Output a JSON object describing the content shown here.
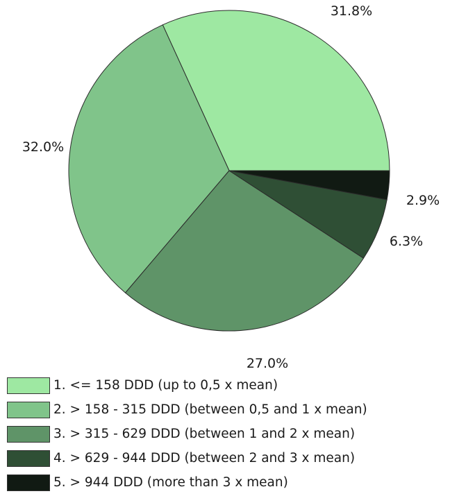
{
  "chart_data": {
    "type": "pie",
    "start_angle_deg": 0,
    "direction": "counterclockwise",
    "slices": [
      {
        "label": "1. <= 158 DDD (up to 0,5 x mean)",
        "value": 31.8,
        "value_label": "31.8%",
        "color": "#9ee8a2"
      },
      {
        "label": "2. > 158 - 315 DDD (between 0,5 and 1 x mean)",
        "value": 32.0,
        "value_label": "32.0%",
        "color": "#80c48a"
      },
      {
        "label": "3. > 315 - 629 DDD (between 1 and 2 x mean)",
        "value": 27.0,
        "value_label": "27.0%",
        "color": "#5f9468"
      },
      {
        "label": "4. > 629 - 944 DDD (between 2 and 3 x mean)",
        "value": 6.3,
        "value_label": "6.3%",
        "color": "#2f4f35"
      },
      {
        "label": "5. > 944 DDD (more than 3 x mean)",
        "value": 2.9,
        "value_label": "2.9%",
        "color": "#111a13"
      }
    ],
    "legend_position": "bottom"
  }
}
